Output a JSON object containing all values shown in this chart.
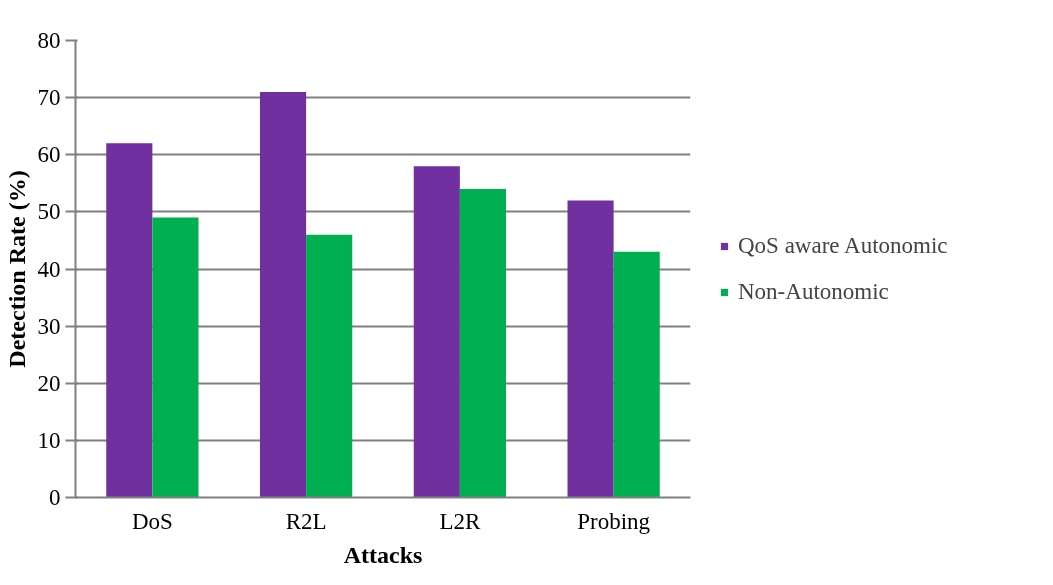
{
  "chart_data": {
    "type": "bar",
    "xlabel": "Attacks",
    "ylabel": "Detection Rate (%)",
    "categories": [
      "DoS",
      "R2L",
      "L2R",
      "Probing"
    ],
    "series": [
      {
        "name": "QoS aware Autonomic",
        "color": "#7030a0",
        "values": [
          62,
          71,
          58,
          52
        ]
      },
      {
        "name": "Non-Autonomic",
        "color": "#00b050",
        "values": [
          49,
          46,
          54,
          43
        ]
      }
    ],
    "ylim": [
      0,
      80
    ],
    "yticks": [
      0,
      10,
      20,
      30,
      40,
      50,
      60,
      70,
      80
    ],
    "grid": "y",
    "legend": "right"
  }
}
